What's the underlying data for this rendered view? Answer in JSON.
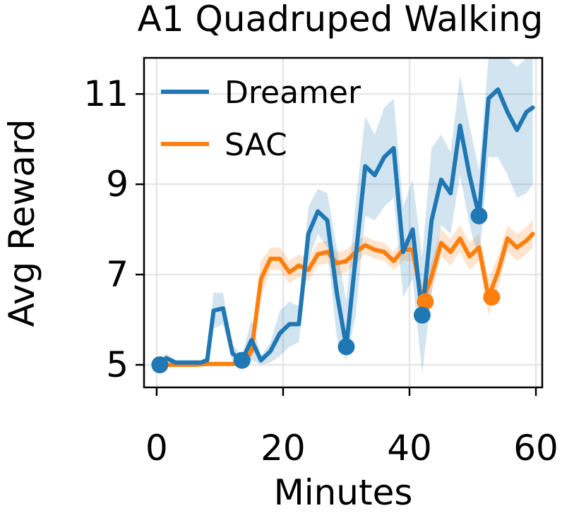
{
  "chart_data": {
    "type": "line",
    "title": "A1 Quadruped Walking",
    "xlabel": "Minutes",
    "ylabel": "Avg Reward",
    "xlim": [
      -2,
      61
    ],
    "ylim": [
      4.5,
      11.8
    ],
    "xticks": [
      0,
      20,
      40,
      60
    ],
    "yticks": [
      5,
      7,
      9,
      11
    ],
    "grid": true,
    "legend": {
      "position": "top-left"
    },
    "series": [
      {
        "name": "Dreamer",
        "color": "#1f77b4",
        "x": [
          0.5,
          1.5,
          3,
          5,
          7,
          8,
          9,
          10.5,
          12,
          13.5,
          15,
          16.5,
          18,
          19.5,
          21,
          22.5,
          24,
          25.5,
          27,
          28.5,
          30,
          31.5,
          33,
          34.5,
          36,
          37.5,
          39,
          40.5,
          42,
          43.5,
          45,
          46.5,
          48,
          49.5,
          51,
          52.5,
          54,
          55.5,
          57,
          58.5,
          59.5
        ],
        "y": [
          5.0,
          5.15,
          5.05,
          5.05,
          5.05,
          5.1,
          6.2,
          6.25,
          5.25,
          5.1,
          5.55,
          5.1,
          5.3,
          5.7,
          5.9,
          5.9,
          7.9,
          8.4,
          8.2,
          6.6,
          5.4,
          7.4,
          9.4,
          9.2,
          9.6,
          9.8,
          7.5,
          8.0,
          6.1,
          8.2,
          9.1,
          8.8,
          10.3,
          9.2,
          8.3,
          10.9,
          11.1,
          10.6,
          10.2,
          10.6,
          10.7
        ],
        "lower": [
          5.0,
          5.05,
          5.0,
          5.0,
          5.0,
          5.0,
          5.8,
          5.9,
          5.05,
          5.0,
          5.1,
          5.0,
          5.05,
          5.2,
          5.4,
          5.5,
          7.3,
          7.9,
          7.6,
          5.6,
          5.1,
          6.1,
          8.3,
          8.2,
          8.5,
          8.7,
          6.5,
          6.9,
          4.8,
          6.6,
          8.1,
          7.9,
          9.2,
          8.1,
          7.3,
          9.6,
          9.6,
          9.2,
          8.7,
          8.8,
          9.0
        ],
        "upper": [
          5.0,
          5.25,
          5.1,
          5.1,
          5.1,
          5.2,
          6.6,
          6.6,
          5.45,
          5.2,
          6.0,
          5.2,
          5.5,
          6.2,
          6.4,
          6.3,
          8.5,
          8.9,
          8.8,
          7.6,
          6.4,
          8.6,
          10.5,
          10.1,
          10.7,
          10.9,
          8.5,
          9.1,
          7.4,
          9.8,
          10.1,
          9.7,
          11.4,
          10.3,
          9.3,
          12.0,
          12.4,
          11.9,
          11.6,
          12.0,
          12.2
        ],
        "markers": [
          [
            0.5,
            5.0
          ],
          [
            13.5,
            5.1
          ],
          [
            30,
            5.4
          ],
          [
            42,
            6.1
          ],
          [
            51,
            8.3
          ]
        ]
      },
      {
        "name": "SAC",
        "color": "#ff7f0e",
        "x": [
          0.5,
          2,
          4,
          6,
          8,
          10,
          12,
          13.5,
          15,
          16.5,
          18,
          19.5,
          21,
          22.5,
          24,
          25.5,
          27,
          28.5,
          30,
          31.5,
          33,
          34.5,
          36,
          37.5,
          39,
          40.5,
          42,
          43.5,
          45,
          46.5,
          48,
          49.5,
          51,
          52.5,
          54,
          55.5,
          57,
          58.5,
          59.5
        ],
        "y": [
          5.0,
          5.0,
          5.0,
          5.0,
          5.02,
          5.02,
          5.02,
          5.02,
          5.3,
          6.9,
          7.35,
          7.35,
          7.05,
          7.2,
          7.1,
          7.45,
          7.5,
          7.25,
          7.3,
          7.5,
          7.65,
          7.55,
          7.5,
          7.3,
          7.55,
          7.55,
          6.4,
          6.95,
          7.7,
          7.5,
          7.8,
          7.4,
          7.6,
          6.5,
          7.05,
          7.8,
          7.6,
          7.75,
          7.9
        ],
        "lower": [
          5.0,
          5.0,
          5.0,
          5.0,
          5.0,
          5.0,
          5.0,
          5.0,
          5.1,
          6.5,
          7.1,
          7.1,
          6.8,
          6.95,
          6.85,
          7.2,
          7.25,
          7.0,
          7.05,
          7.25,
          7.45,
          7.35,
          7.3,
          7.1,
          7.3,
          7.3,
          6.0,
          6.6,
          7.4,
          7.2,
          7.5,
          7.1,
          7.3,
          6.1,
          6.7,
          7.5,
          7.3,
          7.45,
          7.6
        ],
        "upper": [
          5.0,
          5.0,
          5.0,
          5.0,
          5.04,
          5.04,
          5.04,
          5.04,
          5.5,
          7.3,
          7.6,
          7.6,
          7.3,
          7.45,
          7.35,
          7.7,
          7.75,
          7.5,
          7.55,
          7.75,
          7.85,
          7.75,
          7.7,
          7.5,
          7.8,
          7.8,
          6.8,
          7.3,
          8.0,
          7.8,
          8.1,
          7.7,
          7.9,
          6.9,
          7.4,
          8.1,
          7.9,
          8.05,
          8.2
        ],
        "markers": [
          [
            0.5,
            5.0
          ],
          [
            42.5,
            6.4
          ],
          [
            53,
            6.5
          ]
        ]
      }
    ]
  }
}
